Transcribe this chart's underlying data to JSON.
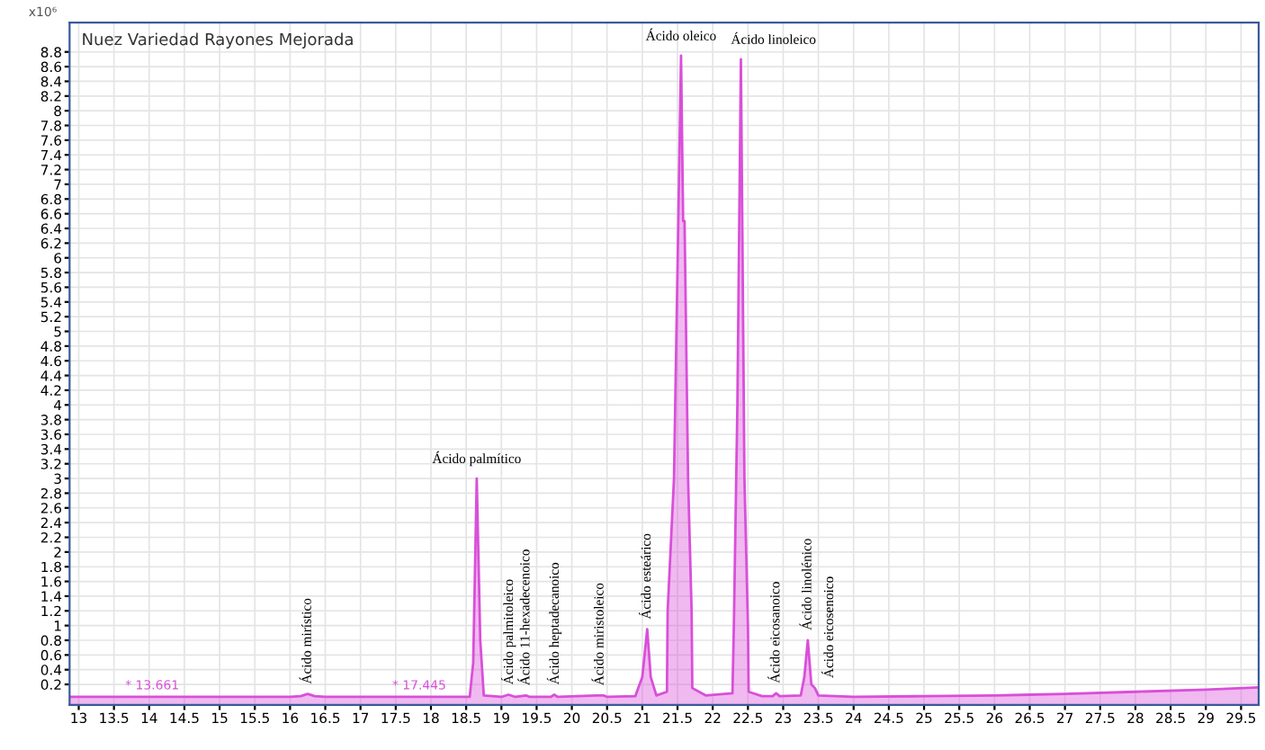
{
  "chart_data": {
    "type": "area",
    "title": "Nuez Variedad Rayones Mejorada",
    "ylabel": "x10⁶",
    "xlim": [
      12.87,
      29.75
    ],
    "xticks": [
      13,
      13.5,
      14,
      14.5,
      15,
      15.5,
      16,
      16.5,
      17,
      17.5,
      18,
      18.5,
      19,
      19.5,
      20,
      20.5,
      21,
      21.5,
      22,
      22.5,
      23,
      23.5,
      24,
      24.5,
      25,
      25.5,
      26,
      26.5,
      27,
      27.5,
      28,
      28.5,
      29,
      29.5
    ],
    "ylim": [
      -0.08,
      9.2
    ],
    "yticks": [
      0.2,
      0.4,
      0.6,
      0.8,
      1,
      1.2,
      1.4,
      1.6,
      1.8,
      2,
      2.2,
      2.4,
      2.6,
      2.8,
      3,
      3.2,
      3.4,
      3.6,
      3.8,
      4,
      4.2,
      4.4,
      4.6,
      4.8,
      5,
      5.2,
      5.4,
      5.6,
      5.8,
      6,
      6.2,
      6.4,
      6.6,
      6.8,
      7,
      7.2,
      7.4,
      7.6,
      7.8,
      8,
      8.2,
      8.4,
      8.6,
      8.8
    ],
    "grid": true,
    "series": [
      {
        "color": "#d94fd9",
        "x": [
          12.87,
          13.66,
          16.0,
          16.15,
          16.25,
          16.35,
          16.5,
          18.55,
          18.6,
          18.65,
          18.7,
          18.75,
          19.0,
          19.1,
          19.2,
          19.35,
          19.4,
          19.7,
          19.75,
          19.8,
          20.35,
          20.45,
          20.5,
          20.9,
          21.0,
          21.07,
          21.12,
          21.2,
          21.35,
          21.36,
          21.45,
          21.52,
          21.55,
          21.58,
          21.6,
          21.65,
          21.7,
          21.71,
          21.9,
          22.28,
          22.3,
          22.35,
          22.4,
          22.45,
          22.5,
          22.51,
          22.7,
          22.85,
          22.9,
          22.95,
          23.25,
          23.3,
          23.35,
          23.4,
          23.45,
          23.5,
          24.0,
          25.0,
          26.0,
          26.5,
          27.0,
          28.0,
          29.0,
          29.75
        ],
        "values": [
          0.03,
          0.03,
          0.03,
          0.04,
          0.07,
          0.04,
          0.03,
          0.03,
          0.5,
          3.0,
          0.8,
          0.05,
          0.03,
          0.06,
          0.03,
          0.05,
          0.03,
          0.03,
          0.06,
          0.03,
          0.05,
          0.05,
          0.03,
          0.04,
          0.3,
          0.95,
          0.3,
          0.05,
          0.1,
          1.2,
          3.0,
          7.0,
          8.75,
          6.5,
          6.5,
          3.0,
          1.2,
          0.15,
          0.05,
          0.08,
          1.0,
          4.0,
          8.7,
          3.0,
          1.0,
          0.1,
          0.04,
          0.04,
          0.08,
          0.04,
          0.05,
          0.3,
          0.8,
          0.2,
          0.15,
          0.05,
          0.03,
          0.04,
          0.05,
          0.06,
          0.07,
          0.1,
          0.13,
          0.16
        ]
      }
    ],
    "annotations": [
      {
        "text": "Ácido mirístico",
        "x": 16.25,
        "y": 0.07
      },
      {
        "text": "Ácido palmítico",
        "x": 18.65,
        "y": 3.0
      },
      {
        "text": "Ácido palmitoleico",
        "x": 19.1,
        "y": 0.06
      },
      {
        "text": "Ácido 11-hexadecenoico",
        "x": 19.35,
        "y": 0.05
      },
      {
        "text": "Ácido heptadecanoico",
        "x": 19.75,
        "y": 0.06
      },
      {
        "text": "Ácido miristoleico",
        "x": 20.4,
        "y": 0.05
      },
      {
        "text": "Ácido esteárico",
        "x": 21.07,
        "y": 0.95
      },
      {
        "text": "Ácido oleico",
        "x": 21.55,
        "y": 8.75
      },
      {
        "text": "Ácido linoleico",
        "x": 22.4,
        "y": 8.7
      },
      {
        "text": "Ácido eicosanoico",
        "x": 22.9,
        "y": 0.08
      },
      {
        "text": "Ácido linolénico",
        "x": 23.35,
        "y": 0.8
      },
      {
        "text": "Ácido eicosenoico",
        "x": 23.45,
        "y": 0.15
      },
      {
        "text": "* 13.661",
        "x": 13.66,
        "y": 0.03
      },
      {
        "text": "* 17.445",
        "x": 17.45,
        "y": 0.03
      }
    ]
  }
}
